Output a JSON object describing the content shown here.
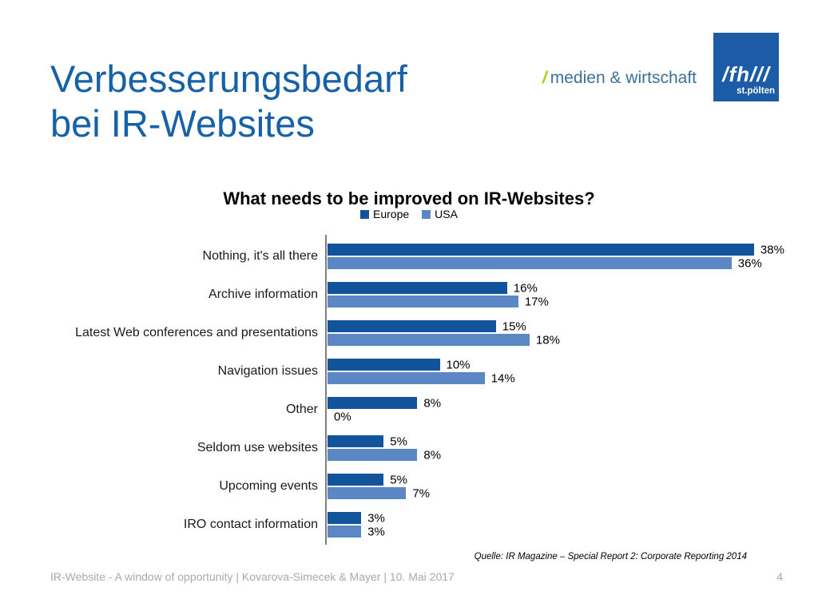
{
  "slide": {
    "title_line1": "Verbesserungsbedarf",
    "title_line2": "bei IR-Websites",
    "title_color": "#1761A8"
  },
  "logo": {
    "slash": "/",
    "department": "medien & wirtschaft",
    "fh_mark": "/fh///",
    "fh_city": "st.pölten",
    "slash_color": "#AFCA0B",
    "text_color": "#3C7097",
    "box_color": "#1C5BA5"
  },
  "chart_data": {
    "type": "bar",
    "orientation": "horizontal",
    "title": "What needs to be improved on IR-Websites?",
    "categories": [
      "Nothing, it's all there",
      "Archive information",
      "Latest Web conferences and presentations",
      "Navigation issues",
      "Other",
      "Seldom use websites",
      "Upcoming events",
      "IRO contact information"
    ],
    "series": [
      {
        "name": "Europe",
        "color": "#11549B",
        "values": [
          38,
          16,
          15,
          10,
          8,
          5,
          5,
          3
        ]
      },
      {
        "name": "USA",
        "color": "#5B87C5",
        "values": [
          36,
          17,
          18,
          14,
          0,
          8,
          7,
          3
        ]
      }
    ],
    "value_suffix": "%",
    "xlim": [
      0,
      40
    ],
    "grid": false,
    "value_labels": true,
    "legend_position": "top"
  },
  "source": "Quelle: IR Magazine – Special Report 2: Corporate Reporting 2014",
  "footer": {
    "text": "IR-Website - A window of opportunity | Kovarova-Simecek & Mayer | 10. Mai 2017",
    "page": "4",
    "text_color": "#A9A9A9"
  }
}
